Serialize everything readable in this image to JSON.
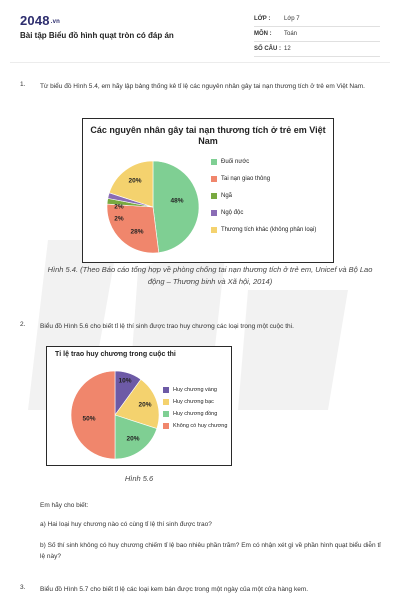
{
  "header": {
    "logo_main": "2048",
    "logo_suffix": ".vn",
    "doc_title": "Bài tập Biểu đồ hình quạt tròn có đáp án",
    "meta": [
      {
        "key": "LỚP :",
        "value": "Lớp 7"
      },
      {
        "key": "MÔN :",
        "value": "Toán"
      },
      {
        "key": "SỐ CÂU :",
        "value": "12"
      }
    ]
  },
  "questions": [
    {
      "num": "1.",
      "text": "Từ biểu đồ Hình 5.4, em hãy lập bảng thống kê tỉ lệ các nguyên nhân gây tai nạn thương tích ở trẻ em Việt Nam."
    },
    {
      "num": "2.",
      "text": "Biểu đồ Hình 5.6 cho biết tỉ lệ thí sinh được trao huy chương các loại trong một cuộc thi."
    },
    {
      "num": "3.",
      "text": "Biểu đồ Hình 5.7 cho biết tỉ lệ các loại kem bán được trong một ngày của một cửa hàng kem."
    }
  ],
  "q2_followup": {
    "intro": "Em hãy cho biết:",
    "a": "a) Hai loại huy chương nào có cùng tỉ lệ thí sinh được trao?",
    "b": "b) Số thí sinh không có huy chương chiếm tỉ lệ bao nhiêu phần trăm? Em có nhận xét gì về phần hình quạt biểu diễn tỉ lệ này?"
  },
  "figure1": {
    "caption": "Hình 5.4. (Theo Báo cáo tổng hợp về phòng chống tai nạn thương tích ở trẻ em, Unicef và Bộ Lao động – Thương binh và Xã hội, 2014)"
  },
  "figure2": {
    "caption": "Hình 5.6"
  },
  "chart_data": [
    {
      "type": "pie",
      "title": "Các nguyên nhân gây tai nạn thương tích ở trẻ em Việt Nam",
      "categories": [
        "Đuối nước",
        "Tai nạn giao thông",
        "Ngã",
        "Ngộ độc",
        "Thương tích khác (không phân loại)"
      ],
      "values": [
        48,
        28,
        2,
        2,
        20
      ],
      "labels": [
        "48%",
        "28%",
        "2%",
        "2%",
        "20%"
      ],
      "colors": [
        "#7fcf93",
        "#f0866c",
        "#79a940",
        "#8a6cb5",
        "#f4d26e"
      ],
      "legend_position": "right"
    },
    {
      "type": "pie",
      "title": "Tỉ lệ trao huy chương trong cuộc thi",
      "categories": [
        "Huy chương vàng",
        "Huy chương bạc",
        "Huy chương đồng",
        "Không có huy chương"
      ],
      "values": [
        10,
        20,
        20,
        50
      ],
      "labels": [
        "10%",
        "20%",
        "20%",
        "50%"
      ],
      "colors": [
        "#6d5aa6",
        "#f4d26e",
        "#7fcf93",
        "#f0866c"
      ],
      "legend_position": "right"
    }
  ]
}
